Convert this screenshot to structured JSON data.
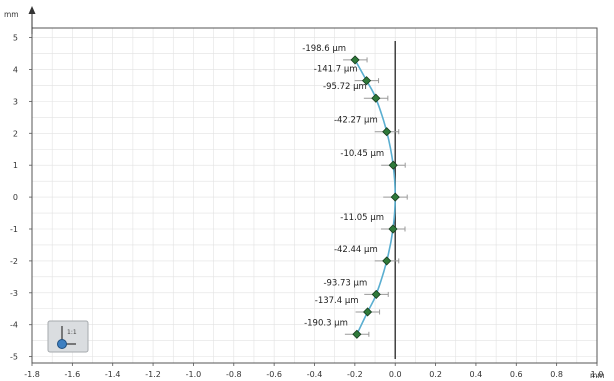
{
  "chart_data": {
    "type": "scatter",
    "title": "",
    "xlabel": "",
    "ylabel": "",
    "x_unit": "mm",
    "y_unit": "mm",
    "xlim": [
      -1.8,
      1.0
    ],
    "ylim": [
      -5.2,
      5.3
    ],
    "grid": true,
    "x_ticks": [
      "-1.8",
      "-1.6",
      "-1.4",
      "-1.2",
      "-1.0",
      "-0.8",
      "-0.6",
      "-0.4",
      "-0.2",
      "0.0",
      "0.2",
      "0.4",
      "0.6",
      "0.8",
      "1.0"
    ],
    "y_ticks": [
      "5",
      "4",
      "3",
      "2",
      "1",
      "0",
      "-1",
      "-2",
      "-3",
      "-4",
      "-5"
    ],
    "reference_line_x": 0,
    "series": [
      {
        "points": [
          {
            "x": -0.199,
            "y": 4.3,
            "label": "-198.6 µm"
          },
          {
            "x": -0.142,
            "y": 3.65,
            "label": "-141.7 µm"
          },
          {
            "x": -0.096,
            "y": 3.1,
            "label": "-95.72 µm"
          },
          {
            "x": -0.042,
            "y": 2.05,
            "label": "-42.27 µm"
          },
          {
            "x": -0.01,
            "y": 1.0,
            "label": "-10.45 µm"
          },
          {
            "x": 0.0,
            "y": 0.0,
            "label": ""
          },
          {
            "x": -0.011,
            "y": -1.0,
            "label": "-11.05 µm"
          },
          {
            "x": -0.042,
            "y": -2.0,
            "label": "-42.44 µm"
          },
          {
            "x": -0.094,
            "y": -3.05,
            "label": "-93.73 µm"
          },
          {
            "x": -0.137,
            "y": -3.6,
            "label": "-137.4 µm"
          },
          {
            "x": -0.19,
            "y": -4.3,
            "label": "-190.3 µm"
          }
        ]
      }
    ]
  },
  "colors": {
    "curve": "#5aaed0",
    "marker": "#2f7a3a",
    "marker_edge": "#163d1f",
    "error_bar": "#9a9a9a",
    "reference_line": "#333333",
    "grid": "#e2e2e2",
    "frame": "#555555"
  },
  "widget": {
    "icon": "axis-orientation-icon",
    "label": "1:1"
  }
}
